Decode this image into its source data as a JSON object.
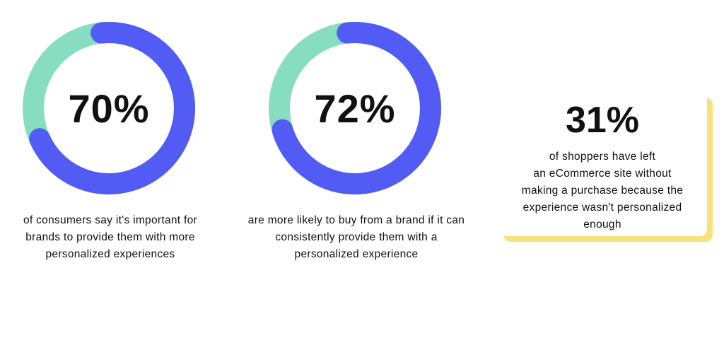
{
  "chart_data": [
    {
      "type": "pie",
      "style": "donut",
      "value": 70,
      "remainder": 30,
      "label": "70%",
      "caption": "of consumers say it's important for brands to provide them with more personalized experiences",
      "colors": {
        "value": "#525CF5",
        "remainder": "#86DDC0"
      }
    },
    {
      "type": "pie",
      "style": "donut",
      "value": 72,
      "remainder": 28,
      "label": "72%",
      "caption": "are more likely to buy from a brand if it can consistently provide them with a personalized experience",
      "colors": {
        "value": "#525CF5",
        "remainder": "#86DDC0"
      }
    }
  ],
  "stat_card": {
    "value": "31%",
    "text": "of shoppers have left\nan  eCommerce site without\nmaking a purchase because the\nexperience wasn't personalized\nenough",
    "accent": "#F9E27D"
  }
}
